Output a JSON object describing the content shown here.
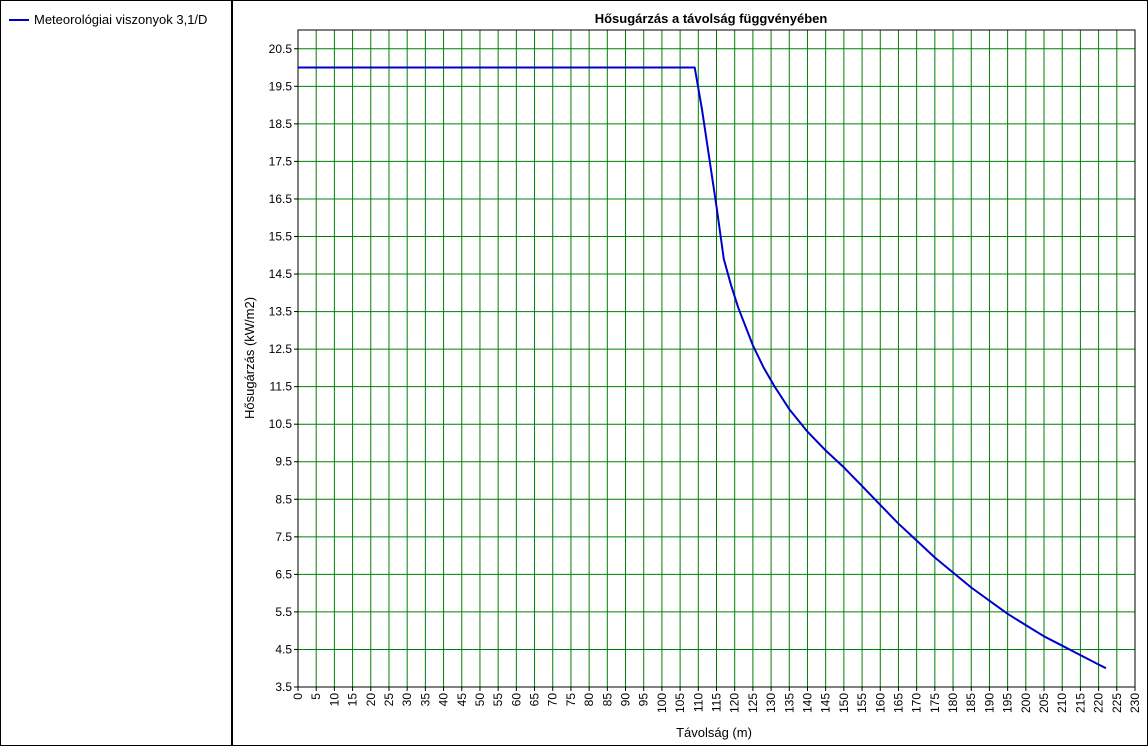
{
  "legend": {
    "items": [
      {
        "label": "Meteorológiai viszonyok 3,1/D",
        "color": "#0000cc"
      }
    ]
  },
  "chart_data": {
    "type": "line",
    "title": "Hősugárzás a távolság függvényében",
    "xlabel": "Távolság (m)",
    "ylabel": "Hősugárzás (kW/m2)",
    "xlim": [
      0,
      230
    ],
    "ylim": [
      3.5,
      21
    ],
    "x_ticks": [
      0,
      5,
      10,
      15,
      20,
      25,
      30,
      35,
      40,
      45,
      50,
      55,
      60,
      65,
      70,
      75,
      80,
      85,
      90,
      95,
      100,
      105,
      110,
      115,
      120,
      125,
      130,
      135,
      140,
      145,
      150,
      155,
      160,
      165,
      170,
      175,
      180,
      185,
      190,
      195,
      200,
      205,
      210,
      215,
      220,
      225,
      230
    ],
    "y_ticks": [
      3.5,
      4.5,
      5.5,
      6.5,
      7.5,
      8.5,
      9.5,
      10.5,
      11.5,
      12.5,
      13.5,
      14.5,
      15.5,
      16.5,
      17.5,
      18.5,
      19.5,
      20.5
    ],
    "grid": true,
    "grid_color": "#008000",
    "legend_position": "left-panel",
    "series": [
      {
        "name": "Meteorológiai viszonyok 3,1/D",
        "color": "#0000cc",
        "x": [
          0,
          109,
          111,
          113,
          115,
          117,
          119,
          121,
          123,
          125,
          128,
          131,
          135,
          140,
          145,
          150,
          155,
          160,
          165,
          170,
          175,
          180,
          185,
          190,
          195,
          200,
          205,
          210,
          215,
          220,
          222
        ],
        "y": [
          20.0,
          20.0,
          18.9,
          17.6,
          16.3,
          14.9,
          14.2,
          13.6,
          13.1,
          12.6,
          12.0,
          11.5,
          10.9,
          10.3,
          9.8,
          9.35,
          8.85,
          8.35,
          7.85,
          7.4,
          6.95,
          6.55,
          6.15,
          5.8,
          5.45,
          5.15,
          4.85,
          4.6,
          4.35,
          4.1,
          4.0
        ]
      }
    ]
  }
}
